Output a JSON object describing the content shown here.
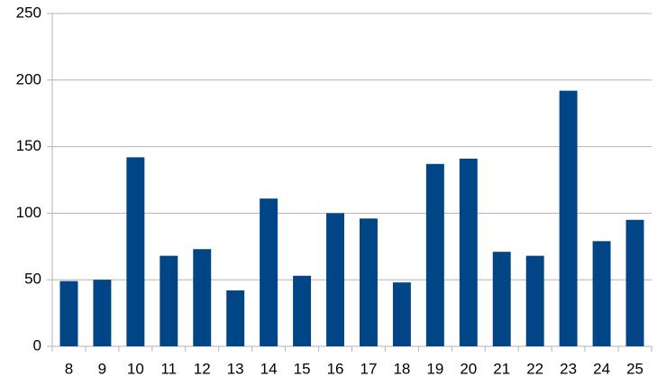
{
  "chart_data": {
    "type": "bar",
    "categories": [
      "8",
      "9",
      "10",
      "11",
      "12",
      "13",
      "14",
      "15",
      "16",
      "17",
      "18",
      "19",
      "20",
      "21",
      "22",
      "23",
      "24",
      "25"
    ],
    "values": [
      49,
      50,
      142,
      68,
      73,
      42,
      111,
      53,
      100,
      96,
      48,
      137,
      141,
      71,
      68,
      192,
      79,
      95
    ],
    "color": "#004586",
    "ylim": [
      0,
      250
    ],
    "yticks": [
      0,
      50,
      100,
      150,
      200,
      250
    ],
    "grid": true
  }
}
